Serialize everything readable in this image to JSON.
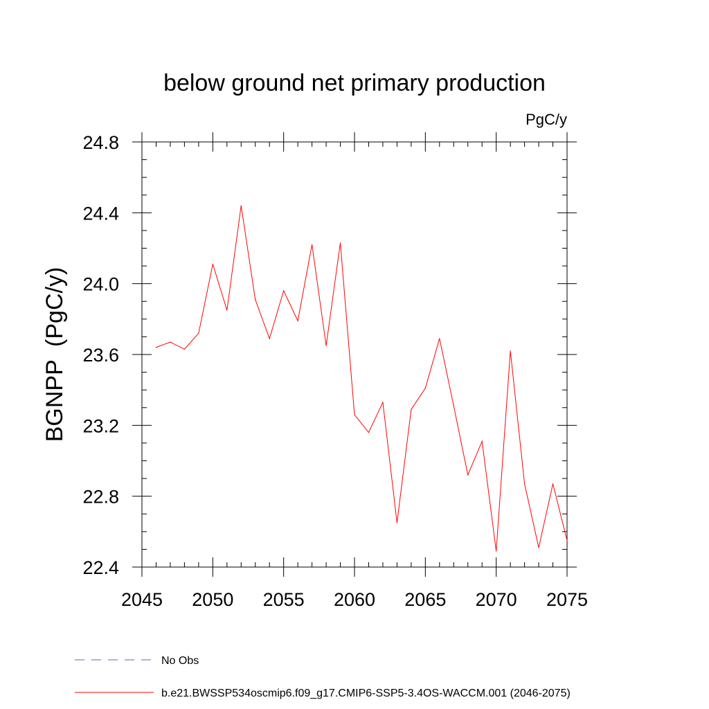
{
  "chart_data": {
    "type": "line",
    "title": "below ground net primary production",
    "units": "PgC/y",
    "xlabel": "",
    "ylabel": "BGNPP  (PgC/y)",
    "xlim": [
      2045,
      2075
    ],
    "ylim": [
      22.4,
      24.8
    ],
    "x_ticks": [
      2045,
      2050,
      2055,
      2060,
      2065,
      2070,
      2075
    ],
    "x_tick_labels": [
      "2045",
      "2050",
      "2055",
      "2060",
      "2065",
      "2070",
      "2075"
    ],
    "y_ticks": [
      22.4,
      22.8,
      23.2,
      23.6,
      24.0,
      24.4,
      24.8
    ],
    "y_tick_labels": [
      "22.4",
      "22.8",
      "23.2",
      "23.6",
      "24.0",
      "24.4",
      "24.8"
    ],
    "x_minor_step": 1,
    "y_minor_step": 0.1,
    "grid": false,
    "legend_position": "bottom-left",
    "series": [
      {
        "name": "No Obs",
        "color": "#6b5fb5",
        "dash": "dashed",
        "x": [],
        "values": []
      },
      {
        "name": "b.e21.BWSSP534oscmip6.f09_g17.CMIP6-SSP5-3.4OS-WACCM.001 (2046-2075)",
        "color": "#ff0000",
        "dash": "solid",
        "x": [
          2046,
          2047,
          2048,
          2049,
          2050,
          2051,
          2052,
          2053,
          2054,
          2055,
          2056,
          2057,
          2058,
          2059,
          2060,
          2061,
          2062,
          2063,
          2064,
          2065,
          2066,
          2067,
          2068,
          2069,
          2070,
          2071,
          2072,
          2073,
          2074,
          2075
        ],
        "values": [
          23.64,
          23.67,
          23.63,
          23.72,
          24.11,
          23.85,
          24.44,
          23.91,
          23.69,
          23.96,
          23.79,
          24.22,
          23.65,
          24.23,
          23.26,
          23.16,
          23.33,
          22.65,
          23.29,
          23.41,
          23.69,
          23.31,
          22.92,
          23.11,
          22.49,
          23.62,
          22.87,
          22.51,
          22.87,
          22.55
        ]
      }
    ]
  }
}
